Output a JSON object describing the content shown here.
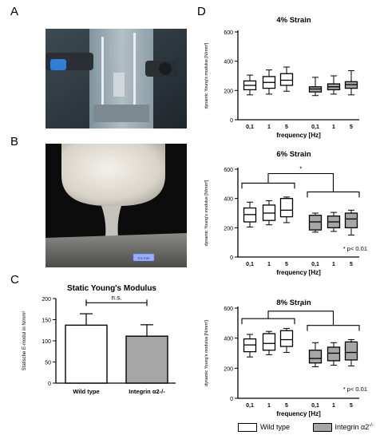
{
  "panels": {
    "a": {
      "letter": "A"
    },
    "b": {
      "letter": "B",
      "scale_label": "0.5 mm"
    },
    "c": {
      "letter": "C"
    },
    "d": {
      "letter": "D"
    }
  },
  "colors": {
    "wild_type": "#ffffff",
    "integrin": "#a6a6a6",
    "stroke": "#000000"
  },
  "legend": {
    "wild_type": "Wild type",
    "integrin_prefix": "Integrin α2",
    "integrin_sup": "-/-"
  },
  "chart_data": [
    {
      "id": "static",
      "type": "bar",
      "title": "Static Young's Modulus",
      "ylabel": "Statische E-modul in N/mm²",
      "ylim": [
        0,
        200
      ],
      "yticks": [
        0,
        50,
        100,
        150,
        200
      ],
      "categories": [
        "Wild type",
        "Integrin α2-/-"
      ],
      "values": [
        137,
        111
      ],
      "errors": [
        27,
        27
      ],
      "colors": [
        "#ffffff",
        "#a6a6a6"
      ],
      "annotation": "n.s."
    },
    {
      "id": "strain4",
      "type": "box",
      "title": "4% Strain",
      "ylabel": "dynamic Young's modulus [N/mm²]",
      "xlabel": "frequency [Hz]",
      "ylim": [
        0,
        600
      ],
      "yticks": [
        0,
        200,
        400,
        600
      ],
      "categories": [
        "0,1",
        "1",
        "5",
        "0,1",
        "1",
        "5"
      ],
      "groups": [
        "wild_type",
        "wild_type",
        "wild_type",
        "integrin",
        "integrin",
        "integrin"
      ],
      "boxes": [
        {
          "min": 170,
          "q1": 205,
          "median": 235,
          "q3": 265,
          "max": 305
        },
        {
          "min": 175,
          "q1": 215,
          "median": 255,
          "q3": 295,
          "max": 340
        },
        {
          "min": 195,
          "q1": 235,
          "median": 270,
          "q3": 315,
          "max": 360
        },
        {
          "min": 165,
          "q1": 190,
          "median": 210,
          "q3": 225,
          "max": 290
        },
        {
          "min": 175,
          "q1": 205,
          "median": 225,
          "q3": 245,
          "max": 300
        },
        {
          "min": 170,
          "q1": 215,
          "median": 240,
          "q3": 260,
          "max": 335
        }
      ]
    },
    {
      "id": "strain6",
      "type": "box",
      "title": "6% Strain",
      "ylabel": "dynamic Young's modulus [N/mm²]",
      "xlabel": "frequency [Hz]",
      "ylim": [
        0,
        600
      ],
      "yticks": [
        0,
        200,
        400,
        600
      ],
      "categories": [
        "0,1",
        "1",
        "5",
        "0,1",
        "1",
        "5"
      ],
      "groups": [
        "wild_type",
        "wild_type",
        "wild_type",
        "integrin",
        "integrin",
        "integrin"
      ],
      "boxes": [
        {
          "min": 205,
          "q1": 240,
          "median": 290,
          "q3": 335,
          "max": 375
        },
        {
          "min": 220,
          "q1": 250,
          "median": 300,
          "q3": 355,
          "max": 385
        },
        {
          "min": 235,
          "q1": 275,
          "median": 320,
          "q3": 400,
          "max": 410
        },
        {
          "min": 170,
          "q1": 185,
          "median": 240,
          "q3": 285,
          "max": 300
        },
        {
          "min": 175,
          "q1": 200,
          "median": 240,
          "q3": 280,
          "max": 305
        },
        {
          "min": 150,
          "q1": 200,
          "median": 260,
          "q3": 300,
          "max": 320
        }
      ],
      "significance": "*",
      "note": "* p< 0.01"
    },
    {
      "id": "strain8",
      "type": "box",
      "title": "8% Strain",
      "ylabel": "dynamic Young's modulus [N/mm²]",
      "xlabel": "frequency [Hz]",
      "ylim": [
        0,
        600
      ],
      "yticks": [
        0,
        200,
        400,
        600
      ],
      "categories": [
        "0,1",
        "1",
        "5",
        "0,1",
        "1",
        "5"
      ],
      "groups": [
        "wild_type",
        "wild_type",
        "wild_type",
        "integrin",
        "integrin",
        "integrin"
      ],
      "boxes": [
        {
          "min": 275,
          "q1": 310,
          "median": 355,
          "q3": 395,
          "max": 425
        },
        {
          "min": 290,
          "q1": 320,
          "median": 365,
          "q3": 430,
          "max": 445
        },
        {
          "min": 305,
          "q1": 345,
          "median": 390,
          "q3": 450,
          "max": 465
        },
        {
          "min": 210,
          "q1": 235,
          "median": 265,
          "q3": 320,
          "max": 370
        },
        {
          "min": 220,
          "q1": 250,
          "median": 300,
          "q3": 340,
          "max": 370
        },
        {
          "min": 215,
          "q1": 255,
          "median": 305,
          "q3": 375,
          "max": 390
        }
      ],
      "significance": "*",
      "note": "* p< 0.01"
    }
  ]
}
